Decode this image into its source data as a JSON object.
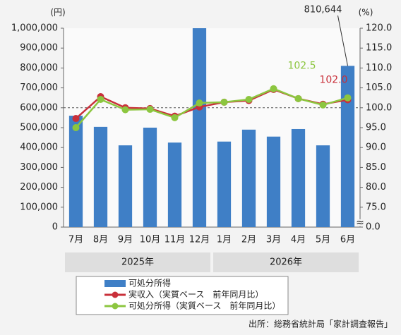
{
  "chart_data": {
    "type": "bar-line",
    "y_unit": "(円)",
    "y2_unit": "(%)",
    "categories": [
      "7月",
      "8月",
      "9月",
      "10月",
      "11月",
      "12月",
      "1月",
      "2月",
      "3月",
      "4月",
      "5月",
      "6月"
    ],
    "category_groups": [
      "2025年",
      "2025年",
      "2025年",
      "2025年",
      "2025年",
      "2025年",
      "2026年",
      "2026年",
      "2026年",
      "2026年",
      "2026年",
      "2026年"
    ],
    "ylim": [
      0,
      1000000
    ],
    "yticks": [
      {
        "value": 0,
        "label": "0"
      },
      {
        "value": 100000,
        "label": "100,000"
      },
      {
        "value": 200000,
        "label": "200,000"
      },
      {
        "value": 300000,
        "label": "300,000"
      },
      {
        "value": 400000,
        "label": "400,000"
      },
      {
        "value": 500000,
        "label": "500,000"
      },
      {
        "value": 600000,
        "label": "600,000"
      },
      {
        "value": 700000,
        "label": "700,000"
      },
      {
        "value": 800000,
        "label": "800,000"
      },
      {
        "value": 900000,
        "label": "900,000"
      },
      {
        "value": 1000000,
        "label": "1,000,000"
      }
    ],
    "y2lim": [
      0,
      120
    ],
    "y2ticks": [
      {
        "value": 0,
        "label": "0.0"
      },
      {
        "value": 75,
        "label": "75.0"
      },
      {
        "value": 80,
        "label": "80.0"
      },
      {
        "value": 85,
        "label": "85.0"
      },
      {
        "value": 90,
        "label": "90.0"
      },
      {
        "value": 95,
        "label": "95.0"
      },
      {
        "value": 100,
        "label": "100.0"
      },
      {
        "value": 105,
        "label": "105.0"
      },
      {
        "value": 110,
        "label": "110.0"
      },
      {
        "value": 115,
        "label": "115.0"
      },
      {
        "value": 120,
        "label": "120.0"
      }
    ],
    "y2_axis_break": true,
    "y2_reference": 100,
    "series": [
      {
        "name": "可処分所得",
        "type": "bar",
        "color": "#3f7fc6",
        "values": [
          560000,
          504000,
          411000,
          500000,
          425000,
          1000000,
          430000,
          490000,
          455000,
          493000,
          411000,
          810644
        ],
        "value_labels": [
          null,
          null,
          null,
          null,
          null,
          null,
          null,
          null,
          null,
          null,
          null,
          "810,644"
        ]
      },
      {
        "name": "実収入（実質ベース　前年同月比）",
        "type": "line",
        "axis": "y2",
        "color": "#c9303a",
        "values": [
          97.3,
          102.8,
          100.0,
          99.8,
          97.9,
          100.2,
          101.4,
          101.8,
          104.6,
          102.3,
          100.9,
          102.0
        ],
        "value_labels": [
          null,
          null,
          null,
          null,
          null,
          null,
          null,
          null,
          null,
          null,
          null,
          "102.0"
        ]
      },
      {
        "name": "可処分所得（実質ベース　前年同月比）",
        "type": "line",
        "axis": "y2",
        "color": "#8cc63f",
        "values": [
          95.0,
          102.1,
          99.5,
          99.6,
          97.5,
          101.2,
          101.4,
          102.1,
          104.8,
          102.3,
          100.7,
          102.5
        ],
        "value_labels": [
          null,
          null,
          null,
          null,
          null,
          null,
          null,
          null,
          null,
          null,
          null,
          "102.5"
        ]
      }
    ],
    "source": "出所：総務省統計局「家計調査報告」"
  }
}
